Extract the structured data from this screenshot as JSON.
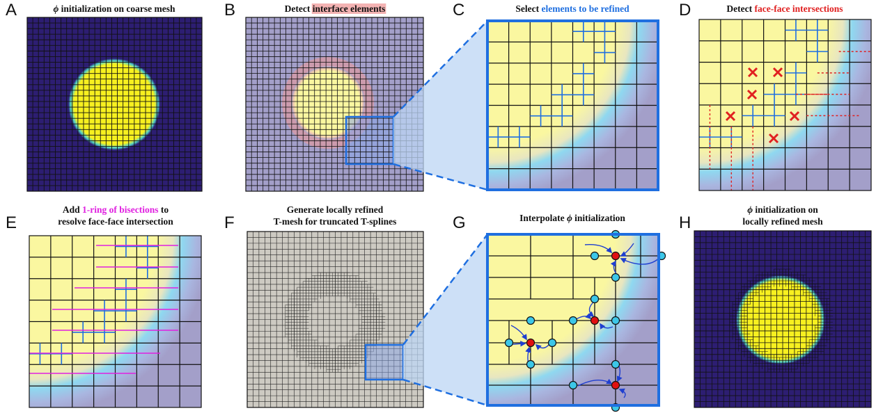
{
  "panels": [
    {
      "letter": "A",
      "title_lines": [
        [
          {
            "t": "ϕ",
            "italic": true
          },
          {
            "t": " initialization on coarse mesh"
          }
        ]
      ]
    },
    {
      "letter": "B",
      "title_lines": [
        [
          {
            "t": "Detect "
          },
          {
            "t": "interface elements",
            "highlight": "#f4b3b3"
          }
        ]
      ]
    },
    {
      "letter": "C",
      "title_lines": [
        [
          {
            "t": "Select "
          },
          {
            "t": "elements to be refined",
            "color": "#1f6fe0"
          }
        ]
      ]
    },
    {
      "letter": "D",
      "title_lines": [
        [
          {
            "t": "Detect "
          },
          {
            "t": "face-face intersections",
            "color": "#e02020"
          }
        ]
      ]
    },
    {
      "letter": "E",
      "title_lines": [
        [
          {
            "t": "Add "
          },
          {
            "t": "1-ring of bisections",
            "color": "#e020e0"
          },
          {
            "t": " to"
          }
        ],
        [
          {
            "t": "resolve face-face intersection"
          }
        ]
      ]
    },
    {
      "letter": "F",
      "title_lines": [
        [
          {
            "t": "Generate locally refined"
          }
        ],
        [
          {
            "t": "T-mesh for truncated T-splines"
          }
        ]
      ]
    },
    {
      "letter": "G",
      "title_lines": [
        [
          {
            "t": "Interpolate "
          },
          {
            "t": "ϕ",
            "italic": true
          },
          {
            "t": " initialization"
          }
        ]
      ]
    },
    {
      "letter": "H",
      "title_lines": [
        [
          {
            "t": "ϕ",
            "italic": true
          },
          {
            "t": " initialization on"
          }
        ],
        [
          {
            "t": "locally refined mesh"
          }
        ]
      ]
    }
  ],
  "colors": {
    "dark_blue": "#2d1e72",
    "yellow": "#f7f020",
    "lavender": "#a39fc9",
    "pale_yellow": "#faf7a0",
    "interface_cyan": "#7fd6f0",
    "refine_blue": "#1f6fe0",
    "intersection_red": "#e02020",
    "bisection_magenta": "#e020e0",
    "tmesh_gray": "#cdcac2",
    "node_cyan": "#3cc7e8",
    "node_red": "#e01010",
    "arrow_blue": "#1f3fd0"
  }
}
